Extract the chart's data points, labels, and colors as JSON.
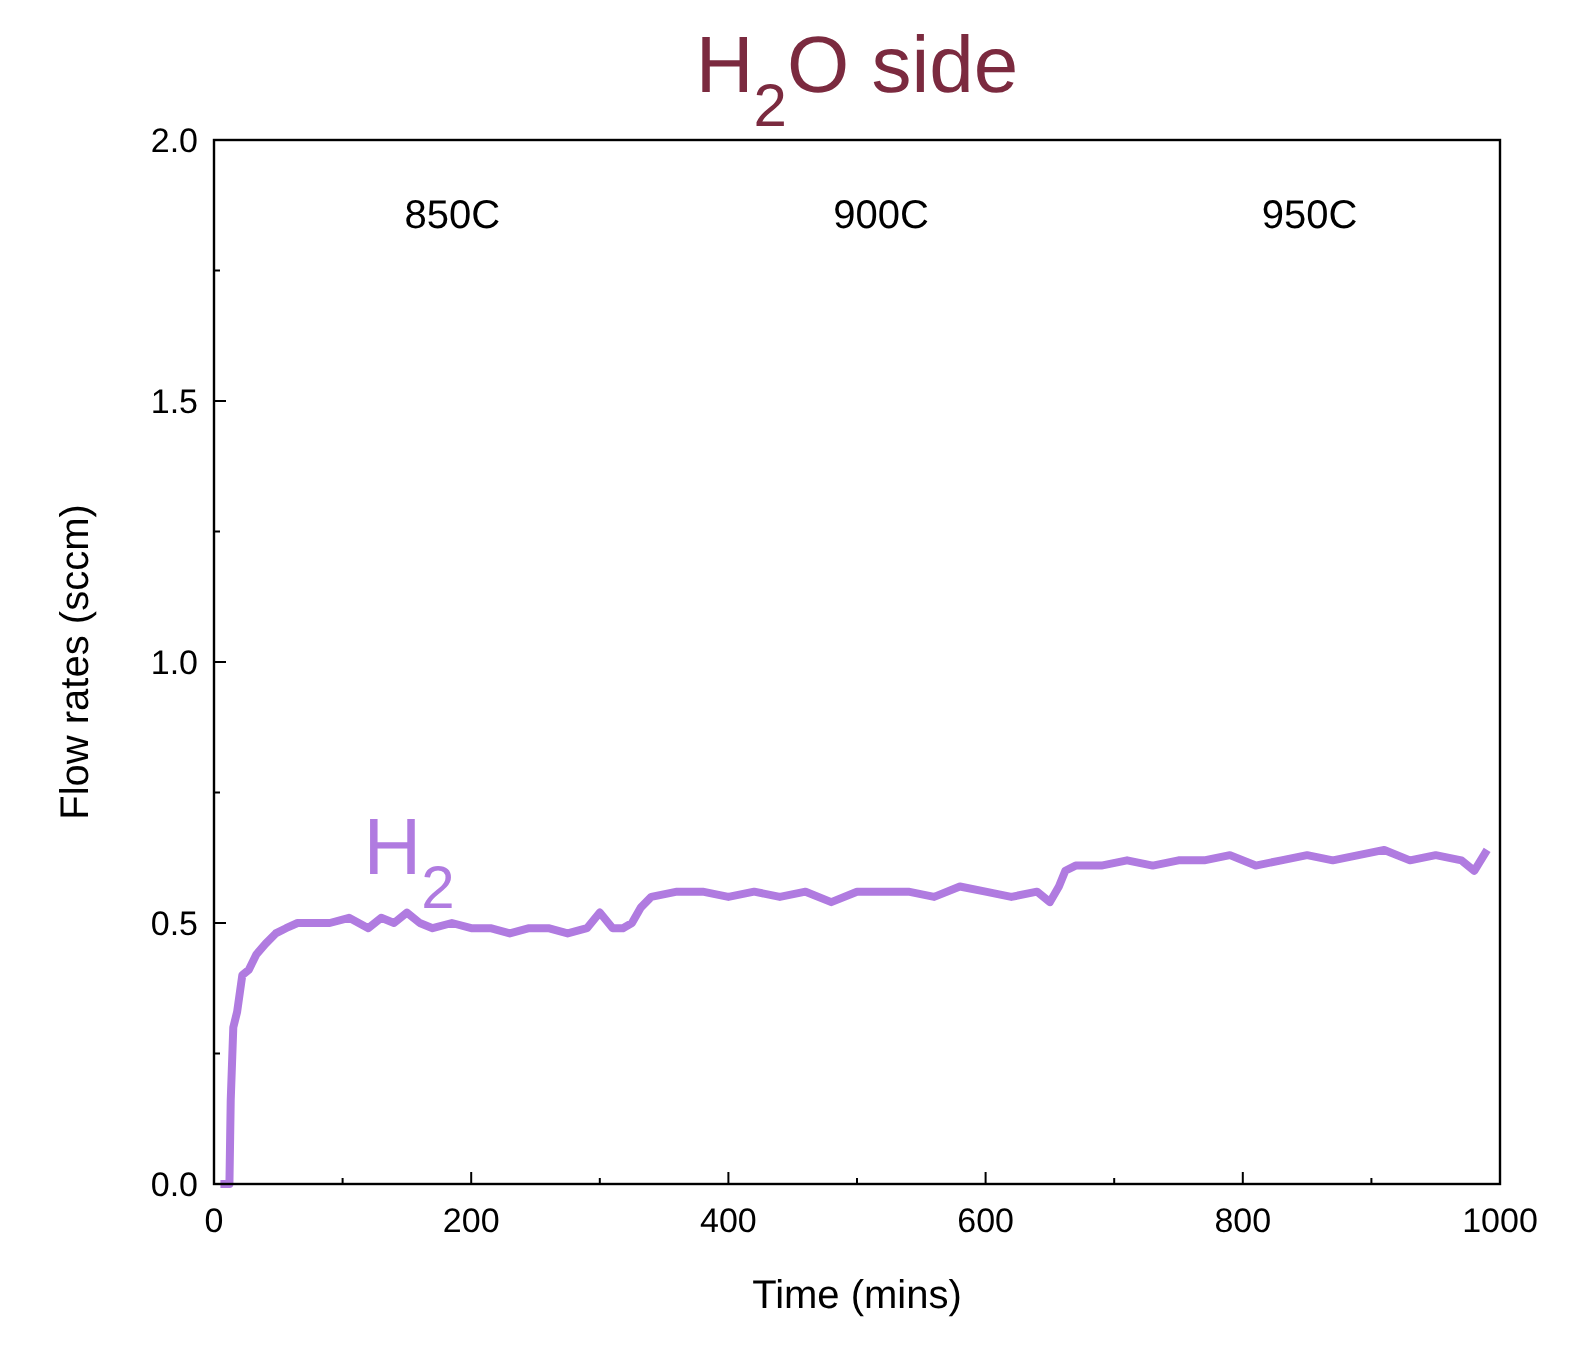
{
  "chart_data": {
    "type": "line",
    "title": "H$_{2}$O side",
    "xlabel": "Time (mins)",
    "ylabel": "Flow rates (sccm)",
    "xlim": [
      0,
      1000
    ],
    "ylim": [
      0,
      2.0
    ],
    "xticks": [
      0,
      200,
      400,
      600,
      800,
      1000
    ],
    "yticks": [
      {
        "value": 0,
        "label": "0.0"
      },
      {
        "value": 0.5,
        "label": "0.5"
      },
      {
        "value": 1.0,
        "label": "1.0"
      },
      {
        "value": 1.5,
        "label": "1.5"
      },
      {
        "value": 2.0,
        "label": "2.0"
      }
    ],
    "grid": false,
    "annotations": [
      "850C",
      "900C",
      "950C"
    ],
    "series": [
      {
        "name": "H$_{2}$",
        "color": "#b07be0",
        "x": [
          5,
          12,
          13,
          15,
          18,
          22,
          27,
          33,
          40,
          48,
          56,
          65,
          75,
          90,
          105,
          120,
          130,
          140,
          150,
          160,
          170,
          185,
          200,
          215,
          230,
          245,
          260,
          275,
          290,
          300,
          310,
          318,
          325,
          332,
          340,
          360,
          380,
          400,
          420,
          440,
          460,
          480,
          500,
          520,
          540,
          560,
          580,
          600,
          620,
          640,
          650,
          657,
          662,
          670,
          690,
          710,
          730,
          750,
          770,
          790,
          810,
          830,
          850,
          870,
          890,
          910,
          930,
          950,
          970,
          980,
          990
        ],
        "values": [
          0,
          0,
          0.16,
          0.3,
          0.33,
          0.4,
          0.41,
          0.44,
          0.46,
          0.48,
          0.49,
          0.5,
          0.5,
          0.5,
          0.51,
          0.49,
          0.51,
          0.5,
          0.52,
          0.5,
          0.49,
          0.5,
          0.49,
          0.49,
          0.48,
          0.49,
          0.49,
          0.48,
          0.49,
          0.52,
          0.49,
          0.49,
          0.5,
          0.53,
          0.55,
          0.56,
          0.56,
          0.55,
          0.56,
          0.55,
          0.56,
          0.54,
          0.56,
          0.56,
          0.56,
          0.55,
          0.57,
          0.56,
          0.55,
          0.56,
          0.54,
          0.57,
          0.6,
          0.61,
          0.61,
          0.62,
          0.61,
          0.62,
          0.62,
          0.63,
          0.61,
          0.62,
          0.63,
          0.62,
          0.63,
          0.64,
          0.62,
          0.63,
          0.62,
          0.6,
          0.64
        ]
      }
    ]
  }
}
